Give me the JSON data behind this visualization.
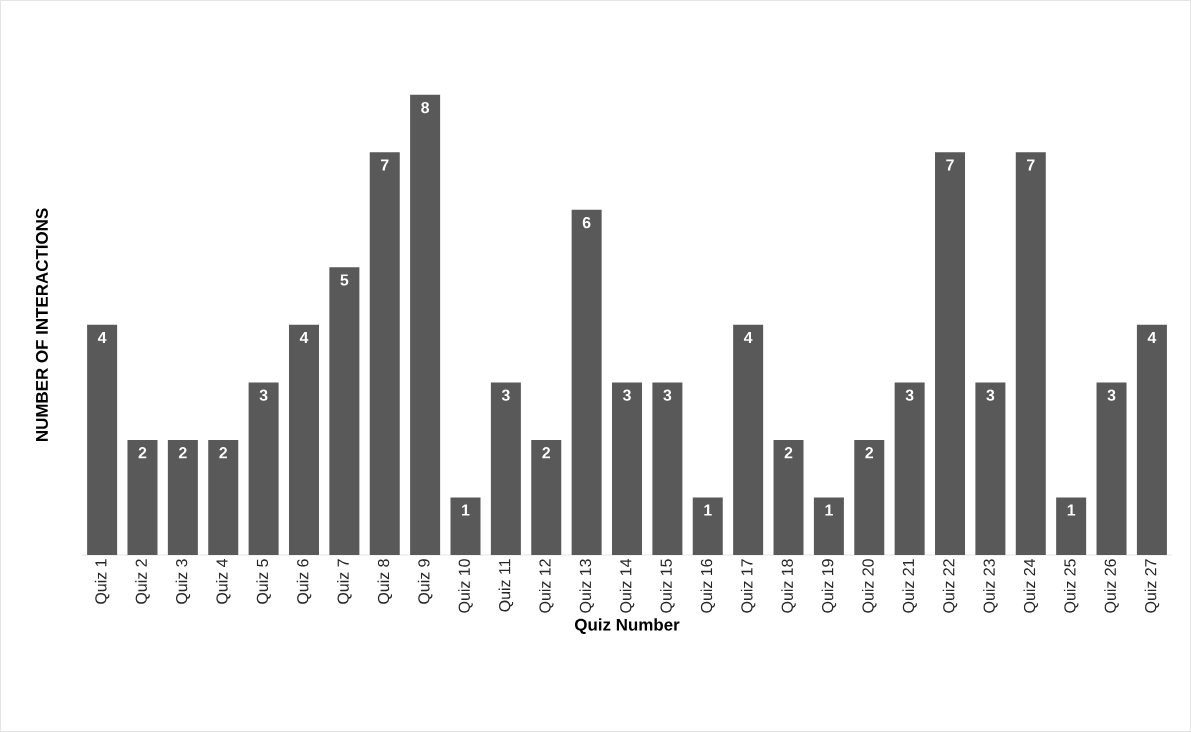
{
  "chart_data": {
    "type": "bar",
    "xlabel": "Quiz Number",
    "ylabel": "NUMBER OF INTERACTIONS",
    "categories": [
      "Quiz 1",
      "Quiz 2",
      "Quiz 3",
      "Quiz 4",
      "Quiz 5",
      "Quiz 6",
      "Quiz 7",
      "Quiz 8",
      "Quiz 9",
      "Quiz 10",
      "Quiz 11",
      "Quiz 12",
      "Quiz 13",
      "Quiz 14",
      "Quiz 15",
      "Quiz 16",
      "Quiz 17",
      "Quiz 18",
      "Quiz 19",
      "Quiz 20",
      "Quiz 21",
      "Quiz 22",
      "Quiz 23",
      "Quiz 24",
      "Quiz 25",
      "Quiz 26",
      "Quiz 27"
    ],
    "values": [
      4,
      2,
      2,
      2,
      3,
      4,
      5,
      7,
      8,
      1,
      3,
      2,
      6,
      3,
      3,
      1,
      4,
      2,
      1,
      2,
      3,
      7,
      3,
      7,
      1,
      3,
      4
    ],
    "color": "#595959",
    "data_labels": true
  }
}
